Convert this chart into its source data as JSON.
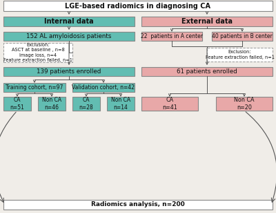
{
  "title_box": "LGE-based radiomics in diagnosing CA",
  "bottom_box": "Radiomics analysis, n=200",
  "internal_data": "Internal data",
  "external_data": "External data",
  "al_patients": "152 AL amyloidosis patients",
  "a_center": "22  patients in A center",
  "b_center": "40 patients in B center",
  "exclusion_left": "Exclusion:\nASCT at baseline , n=8\nImage loss, n=4\nFeature extraction failed, n=1",
  "exclusion_right": "Exclusion:\nFeature extraction failed, n=1",
  "enrolled_left": "139 patients enrolled",
  "enrolled_right": "61 patients enrolled",
  "training": "Training cohort, n=97",
  "validation": "Validation cohort, n=42",
  "ca_train": "CA\nn=51",
  "nonca_train": "Non CA\nn=46",
  "ca_val": "CA\nn=28",
  "nonca_val": "Non CA\nn=14",
  "ca_ext": "CA\nn=41",
  "nonca_ext": "Non CA\nn=20",
  "teal": "#62bdb2",
  "pink": "#e8a8a8",
  "white": "#ffffff",
  "bg": "#f0ede8",
  "arrow_color": "#555555",
  "border_color": "#888888"
}
